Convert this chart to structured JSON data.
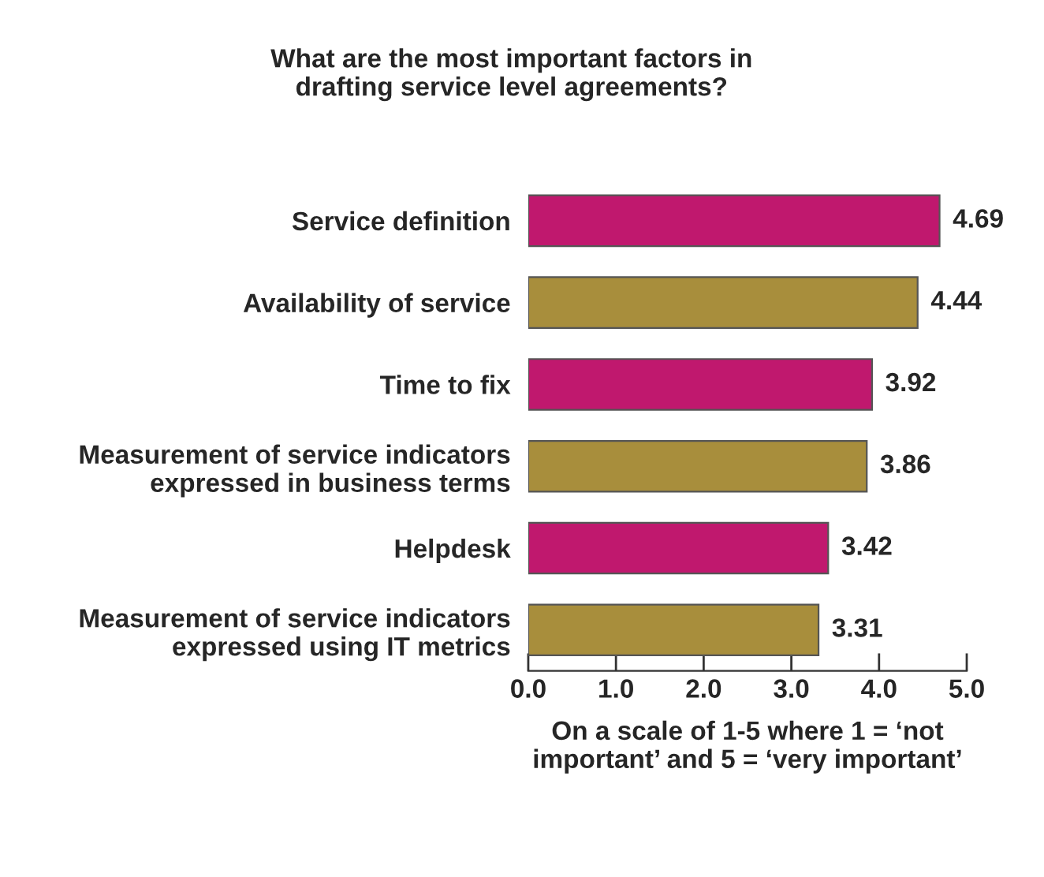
{
  "chart_data": {
    "type": "bar",
    "orientation": "horizontal",
    "title": "What are the most important factors in\ndrafting service level agreements?",
    "xlabel": "On a scale of 1-5 where 1 = ‘not\nimportant’ and 5 = ‘very important’",
    "categories": [
      "Service definition",
      "Availability of service",
      "Time to fix",
      "Measurement of service indicators\nexpressed in business terms",
      "Helpdesk",
      "Measurement of service indicators\nexpressed using IT metrics"
    ],
    "values": [
      4.69,
      4.44,
      3.92,
      3.86,
      3.42,
      3.31
    ],
    "colors": [
      "#c0186e",
      "#a88e3c",
      "#c0186e",
      "#a88e3c",
      "#c0186e",
      "#a88e3c"
    ],
    "xlim": [
      0,
      5
    ],
    "xticks": [
      {
        "value": 0,
        "label": "0.0"
      },
      {
        "value": 1,
        "label": "1.0"
      },
      {
        "value": 2,
        "label": "2.0"
      },
      {
        "value": 3,
        "label": "3.0"
      },
      {
        "value": 4,
        "label": "4.0"
      },
      {
        "value": 5,
        "label": "5.0"
      }
    ],
    "data_labels": true,
    "grid": false,
    "legend": false
  }
}
